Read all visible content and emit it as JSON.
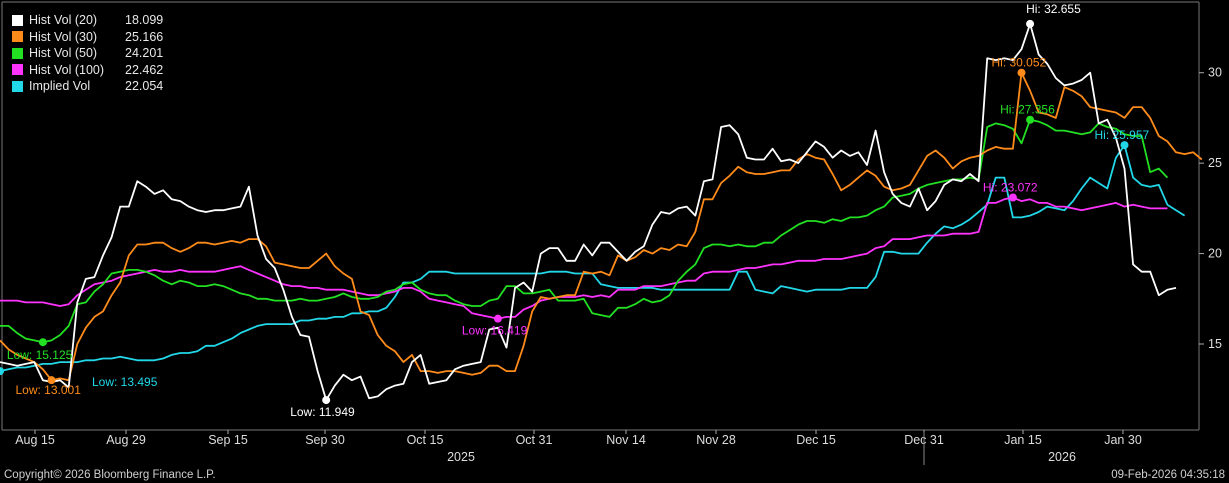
{
  "chart_data": {
    "type": "line",
    "x_labels": [
      "Aug 15",
      "Aug 29",
      "Sep 15",
      "Sep 30",
      "Oct 15",
      "Oct 31",
      "Nov 14",
      "Nov 28",
      "Dec 15",
      "Dec 31",
      "Jan 15",
      "Jan 30"
    ],
    "years": [
      "2025",
      "2026"
    ],
    "y_ticks": [
      15,
      20,
      25,
      30
    ],
    "ylim": [
      10.3,
      33.8
    ],
    "grid": false,
    "legend_position": "top-left",
    "series": [
      {
        "name": "Hist Vol (20)",
        "last": "18.099",
        "color": "#ffffff",
        "values": [
          14.0,
          13.9,
          13.8,
          13.9,
          14.0,
          13.0,
          12.9,
          13.0,
          12.6,
          17.3,
          18.6,
          18.7,
          19.9,
          20.9,
          22.6,
          22.6,
          24.0,
          23.7,
          23.3,
          23.5,
          23.0,
          22.9,
          22.6,
          22.4,
          22.3,
          22.4,
          22.4,
          22.5,
          22.6,
          23.7,
          21.0,
          19.7,
          19.2,
          18.0,
          16.5,
          15.5,
          15.4,
          13.5,
          11.9,
          12.7,
          13.3,
          13.0,
          13.2,
          12.0,
          12.1,
          12.5,
          12.7,
          12.8,
          14.0,
          14.4,
          12.8,
          12.9,
          13.0,
          13.6,
          13.8,
          13.9,
          14.0,
          15.8,
          15.9,
          14.8,
          18.1,
          18.4,
          17.9,
          20.0,
          20.3,
          20.3,
          19.6,
          19.6,
          20.5,
          19.9,
          20.6,
          20.6,
          20.1,
          19.6,
          20.1,
          20.4,
          21.6,
          22.3,
          22.2,
          22.5,
          22.6,
          22.1,
          24.0,
          24.1,
          27.0,
          27.1,
          26.6,
          25.3,
          25.2,
          25.2,
          25.8,
          25.1,
          25.2,
          25.0,
          25.6,
          26.2,
          25.9,
          25.3,
          25.7,
          25.4,
          25.6,
          24.9,
          26.8,
          24.5,
          23.3,
          22.8,
          22.6,
          23.6,
          22.4,
          22.9,
          23.8,
          24.1,
          24.0,
          24.4,
          24.0,
          30.8,
          30.7,
          30.8,
          30.7,
          31.3,
          32.7,
          31.0,
          30.5,
          29.7,
          29.3,
          29.4,
          29.6,
          30.0,
          27.2,
          27.4,
          26.4,
          24.7,
          19.4,
          19.0,
          19.0,
          17.7,
          18.0,
          18.1
        ]
      },
      {
        "name": "Hist Vol (30)",
        "last": "25.166",
        "color": "#ff8c1a",
        "values": [
          15.2,
          14.7,
          14.4,
          14.2,
          14.0,
          13.6,
          13.0,
          13.1,
          13.0,
          15.0,
          15.9,
          16.5,
          16.8,
          17.7,
          18.4,
          19.9,
          20.5,
          20.5,
          20.6,
          20.6,
          20.3,
          20.1,
          20.3,
          20.6,
          20.6,
          20.5,
          20.6,
          20.7,
          20.6,
          20.8,
          20.8,
          20.4,
          19.5,
          19.4,
          19.3,
          19.2,
          19.2,
          19.6,
          20.0,
          19.3,
          18.9,
          18.6,
          16.8,
          16.6,
          15.5,
          14.9,
          14.6,
          14.0,
          14.4,
          13.5,
          13.5,
          13.4,
          13.5,
          13.5,
          13.4,
          13.3,
          13.4,
          13.8,
          13.8,
          13.5,
          13.5,
          14.9,
          16.8,
          17.6,
          17.5,
          17.6,
          17.7,
          17.7,
          19.0,
          18.9,
          19.0,
          18.8,
          19.9,
          19.6,
          19.8,
          20.2,
          20.0,
          20.3,
          20.2,
          20.5,
          20.4,
          21.2,
          23.0,
          23.0,
          23.9,
          24.3,
          24.8,
          24.5,
          24.4,
          24.4,
          24.5,
          24.6,
          24.6,
          25.2,
          25.5,
          25.3,
          25.2,
          24.4,
          23.5,
          23.8,
          24.2,
          24.6,
          24.3,
          23.7,
          23.5,
          23.6,
          23.8,
          24.6,
          25.4,
          25.7,
          25.3,
          24.7,
          25.1,
          25.3,
          25.4,
          25.7,
          25.9,
          25.8,
          25.8,
          30.0,
          29.0,
          27.8,
          27.7,
          27.5,
          29.2,
          29.0,
          28.7,
          28.1,
          28.0,
          27.9,
          27.8,
          27.5,
          28.1,
          28.1,
          27.5,
          26.5,
          26.2,
          25.6,
          25.5,
          25.6,
          25.2
        ]
      },
      {
        "name": "Hist Vol (50)",
        "last": "24.201",
        "color": "#22e022",
        "values": [
          16.0,
          16.0,
          15.6,
          15.3,
          15.2,
          15.1,
          15.2,
          15.5,
          16.0,
          17.2,
          17.3,
          17.9,
          18.3,
          18.9,
          19.0,
          19.1,
          19.1,
          19.0,
          18.8,
          18.5,
          18.3,
          18.5,
          18.4,
          18.2,
          18.2,
          18.3,
          18.2,
          18.0,
          17.8,
          17.7,
          17.5,
          17.5,
          17.4,
          17.4,
          17.4,
          17.5,
          17.4,
          17.4,
          17.5,
          17.6,
          17.8,
          17.6,
          17.5,
          17.5,
          17.6,
          17.9,
          18.0,
          18.3,
          18.4,
          18.0,
          17.8,
          17.7,
          17.7,
          17.4,
          17.2,
          17.1,
          17.1,
          17.4,
          17.5,
          18.2,
          18.2,
          17.8,
          17.8,
          17.9,
          18.0,
          17.4,
          17.4,
          17.4,
          17.5,
          16.7,
          16.6,
          16.5,
          17.0,
          17.0,
          17.2,
          17.5,
          17.3,
          17.4,
          17.7,
          18.5,
          19.0,
          19.4,
          20.3,
          20.5,
          20.5,
          20.4,
          20.5,
          20.4,
          20.4,
          20.6,
          20.6,
          21.0,
          21.3,
          21.6,
          21.8,
          21.8,
          21.7,
          21.9,
          21.8,
          22.0,
          22.0,
          22.1,
          22.4,
          22.6,
          23.1,
          23.2,
          23.3,
          23.6,
          23.8,
          23.9,
          24.0,
          24.1,
          24.1,
          24.2,
          24.1,
          27.0,
          27.2,
          27.1,
          26.9,
          26.1,
          27.4,
          27.3,
          27.1,
          26.8,
          26.8,
          26.7,
          26.6,
          26.7,
          27.2,
          27.0,
          26.9,
          26.6,
          26.5,
          26.5,
          24.5,
          24.7,
          24.2
        ]
      },
      {
        "name": "Hist Vol (100)",
        "last": "22.462",
        "color": "#ff33ff",
        "values": [
          17.4,
          17.4,
          17.4,
          17.3,
          17.3,
          17.3,
          17.2,
          17.1,
          17.2,
          17.7,
          18.0,
          18.3,
          18.4,
          18.5,
          18.7,
          18.8,
          18.9,
          19.0,
          19.1,
          19.0,
          19.0,
          19.1,
          19.0,
          19.0,
          19.0,
          19.0,
          19.1,
          19.2,
          19.3,
          19.1,
          18.9,
          18.7,
          18.5,
          18.3,
          18.2,
          18.2,
          18.1,
          18.1,
          18.0,
          18.0,
          18.0,
          17.9,
          17.8,
          17.7,
          17.7,
          17.8,
          17.9,
          18.1,
          18.1,
          17.9,
          17.5,
          17.4,
          17.3,
          17.2,
          17.1,
          16.7,
          16.6,
          16.5,
          16.4,
          16.5,
          16.5,
          16.9,
          17.1,
          17.4,
          17.5,
          17.6,
          17.6,
          17.6,
          17.7,
          17.6,
          17.7,
          17.6,
          18.0,
          18.0,
          18.0,
          18.2,
          18.2,
          18.2,
          18.3,
          18.4,
          18.5,
          18.5,
          18.9,
          19.0,
          19.0,
          19.0,
          19.1,
          19.2,
          19.2,
          19.3,
          19.4,
          19.4,
          19.5,
          19.6,
          19.6,
          19.6,
          19.7,
          19.7,
          19.7,
          19.8,
          19.9,
          20.0,
          20.3,
          20.4,
          20.8,
          20.8,
          20.8,
          20.9,
          21.0,
          21.0,
          21.0,
          21.1,
          21.1,
          21.1,
          21.2,
          22.8,
          22.8,
          23.0,
          23.1,
          22.9,
          23.0,
          22.8,
          22.8,
          22.6,
          22.6,
          22.5,
          22.4,
          22.5,
          22.6,
          22.7,
          22.8,
          22.6,
          22.7,
          22.6,
          22.5,
          22.5,
          22.5
        ]
      },
      {
        "name": "Implied Vol",
        "last": "22.054",
        "color": "#22d8e8",
        "values": [
          13.5,
          13.6,
          13.7,
          13.7,
          13.8,
          13.9,
          13.9,
          14.0,
          14.0,
          14.0,
          14.1,
          14.1,
          14.2,
          14.2,
          14.3,
          14.2,
          14.1,
          14.1,
          14.1,
          14.2,
          14.4,
          14.5,
          14.5,
          14.6,
          14.9,
          14.9,
          15.1,
          15.3,
          15.6,
          15.8,
          16.0,
          16.1,
          16.1,
          16.1,
          16.1,
          16.3,
          16.3,
          16.4,
          16.4,
          16.5,
          16.5,
          16.7,
          16.7,
          16.8,
          16.8,
          17.0,
          17.6,
          18.4,
          18.4,
          18.6,
          19.0,
          19.0,
          19.0,
          18.9,
          18.9,
          18.9,
          18.9,
          18.9,
          18.9,
          18.9,
          18.9,
          18.9,
          18.9,
          18.9,
          19.0,
          19.0,
          19.0,
          18.9,
          18.9,
          18.9,
          18.3,
          18.2,
          18.1,
          18.1,
          18.1,
          18.1,
          18.1,
          18.0,
          18.0,
          18.0,
          18.0,
          18.0,
          18.0,
          18.0,
          18.0,
          18.0,
          19.0,
          19.0,
          18.0,
          17.9,
          17.8,
          18.2,
          18.1,
          18.0,
          17.9,
          18.0,
          18.0,
          18.0,
          18.0,
          18.1,
          18.1,
          18.1,
          18.7,
          20.1,
          20.1,
          20.0,
          20.0,
          20.0,
          20.6,
          21.1,
          21.5,
          21.4,
          21.6,
          21.9,
          22.3,
          22.7,
          24.2,
          24.2,
          22.0,
          22.0,
          22.1,
          22.3,
          22.6,
          22.5,
          22.4,
          22.9,
          23.6,
          24.2,
          23.9,
          23.6,
          25.3,
          26.0,
          24.2,
          23.8,
          23.7,
          23.8,
          22.7,
          22.4,
          22.1
        ]
      }
    ],
    "annotations": [
      {
        "label": "Hi: 32.655",
        "series": 0,
        "color": "#ffffff"
      },
      {
        "label": "Low: 11.949",
        "series": 0,
        "color": "#ffffff"
      },
      {
        "label": "Hi: 30.052",
        "series": 1,
        "color": "#ff8c1a"
      },
      {
        "label": "Low: 13.001",
        "series": 1,
        "color": "#ff8c1a"
      },
      {
        "label": "Hi: 27.356",
        "series": 2,
        "color": "#22e022"
      },
      {
        "label": "Low: 15.125",
        "series": 2,
        "color": "#22e022"
      },
      {
        "label": "Hi: 23.072",
        "series": 3,
        "color": "#ff33ff"
      },
      {
        "label": "Low: 16.419",
        "series": 3,
        "color": "#ff33ff"
      },
      {
        "label": "Hi: 25.957",
        "series": 4,
        "color": "#22d8e8"
      },
      {
        "label": "Low: 13.495",
        "series": 4,
        "color": "#22d8e8"
      }
    ]
  },
  "footer": {
    "copyright": "Copyright© 2026 Bloomberg Finance L.P.",
    "timestamp": "09-Feb-2026 04:35:18"
  }
}
